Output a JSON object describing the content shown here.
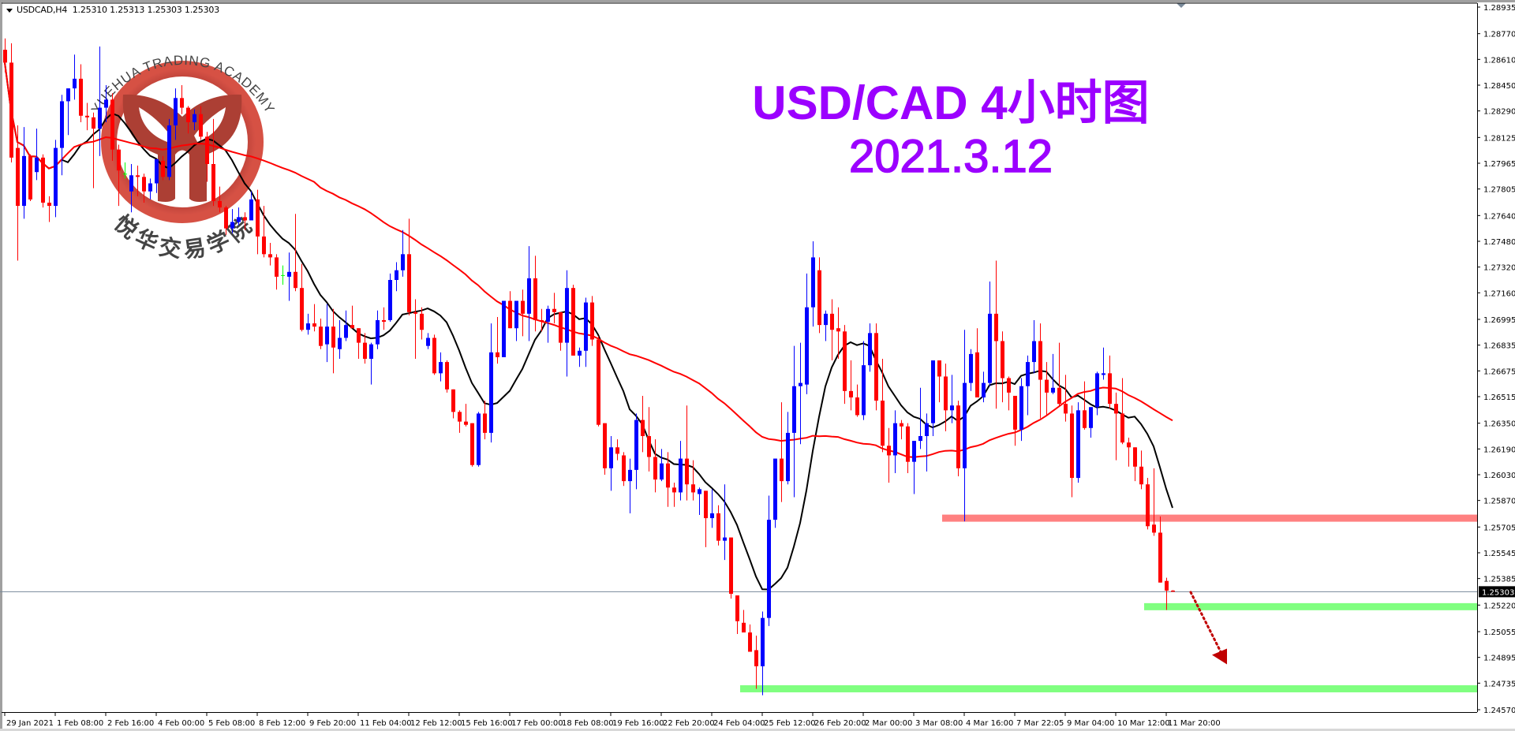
{
  "header": {
    "symbol": "USDCAD,H4",
    "ohlc": "1.25310 1.25313 1.25303 1.25303"
  },
  "title": {
    "line1": "USD/CAD 4小时图",
    "line2": "2021.3.12"
  },
  "watermark": {
    "top_text": "YUEHUA TRADING ACADEMY",
    "bottom_text": "悦华交易学院",
    "ring_color": "#b5332a",
    "text_color": "#3a3a3a"
  },
  "colors": {
    "bull": "#0000ff",
    "bear": "#ff0000",
    "doji": "#00ff00",
    "ma_fast": "#000000",
    "ma_slow": "#ff0000",
    "resistance_zone": "#ff8080",
    "support_zone": "#80ff80",
    "arrow": "#c00000",
    "price_line": "#778899"
  },
  "chart_data": {
    "type": "candlestick",
    "symbol": "USDCAD",
    "timeframe": "H4",
    "ylim": [
      1.2457,
      1.28935
    ],
    "y_ticks": [
      "1.28935",
      "1.28770",
      "1.28610",
      "1.28450",
      "1.28290",
      "1.28125",
      "1.27965",
      "1.27805",
      "1.27640",
      "1.27480",
      "1.27320",
      "1.27160",
      "1.26995",
      "1.26835",
      "1.26675",
      "1.26515",
      "1.26350",
      "1.26190",
      "1.26030",
      "1.25870",
      "1.25705",
      "1.25545",
      "1.25385",
      "1.25220",
      "1.25055",
      "1.24895",
      "1.24735",
      "1.24570"
    ],
    "x_ticks": [
      "29 Jan 2021",
      "1 Feb 08:00",
      "2 Feb 16:00",
      "4 Feb 00:00",
      "5 Feb 08:00",
      "8 Feb 12:00",
      "9 Feb 20:00",
      "11 Feb 04:00",
      "12 Feb 12:00",
      "15 Feb 16:00",
      "17 Feb 00:00",
      "18 Feb 08:00",
      "19 Feb 16:00",
      "22 Feb 20:00",
      "24 Feb 04:00",
      "25 Feb 12:00",
      "26 Feb 20:00",
      "2 Mar 00:00",
      "3 Mar 08:00",
      "4 Mar 16:00",
      "7 Mar 22:05",
      "9 Mar 04:00",
      "10 Mar 12:00",
      "11 Mar 20:00"
    ],
    "x_tick_every_bars": 8,
    "current_price": "1.25303",
    "moving_averages": [
      {
        "period": 10,
        "color": "#000000"
      },
      {
        "period": 50,
        "color": "#ff0000"
      }
    ],
    "zones": [
      {
        "kind": "resistance",
        "price": 1.2576,
        "from_date": "4 Mar 08:00"
      },
      {
        "kind": "support",
        "price": 1.2521,
        "from_date": "11 Mar 16:00"
      },
      {
        "kind": "support",
        "price": 1.247,
        "from_date": "25 Feb 04:00"
      }
    ],
    "arrow": {
      "direction": "down",
      "from_price": 1.253,
      "to_price": 1.2492
    },
    "candles_ohlc": [
      [
        1.2867,
        1.2874,
        1.2853,
        1.2859
      ],
      [
        1.2859,
        1.2871,
        1.2797,
        1.28
      ],
      [
        1.2806,
        1.282,
        1.2736,
        1.277
      ],
      [
        1.277,
        1.2819,
        1.2762,
        1.2801
      ],
      [
        1.2801,
        1.2802,
        1.2773,
        1.2774
      ],
      [
        1.2791,
        1.2818,
        1.2786,
        1.28
      ],
      [
        1.28,
        1.2802,
        1.2769,
        1.2772
      ],
      [
        1.2772,
        1.2776,
        1.276,
        1.277
      ],
      [
        1.277,
        1.2811,
        1.2763,
        1.2806
      ],
      [
        1.2806,
        1.2839,
        1.2789,
        1.2835
      ],
      [
        1.2835,
        1.2843,
        1.2814,
        1.2843
      ],
      [
        1.2843,
        1.2864,
        1.2836,
        1.2849
      ],
      [
        1.2849,
        1.2858,
        1.2822,
        1.2826
      ],
      [
        1.2826,
        1.2834,
        1.2817,
        1.2825
      ],
      [
        1.2825,
        1.2828,
        1.2781,
        1.2818
      ],
      [
        1.2818,
        1.2869,
        1.2801,
        1.2831
      ],
      [
        1.2831,
        1.2845,
        1.2822,
        1.2836
      ],
      [
        1.2836,
        1.284,
        1.2798,
        1.2805
      ],
      [
        1.2805,
        1.2808,
        1.277,
        1.2792
      ],
      [
        1.279,
        1.2797,
        1.2787,
        1.279
      ],
      [
        1.2779,
        1.2796,
        1.2766,
        1.2789
      ],
      [
        1.2789,
        1.2795,
        1.2776,
        1.2788
      ],
      [
        1.2788,
        1.279,
        1.2772,
        1.2779
      ],
      [
        1.2779,
        1.2787,
        1.2774,
        1.2784
      ],
      [
        1.2784,
        1.2799,
        1.2778,
        1.2799
      ],
      [
        1.2798,
        1.2801,
        1.2786,
        1.2788
      ],
      [
        1.2788,
        1.2824,
        1.2786,
        1.282
      ],
      [
        1.282,
        1.2843,
        1.2811,
        1.2837
      ],
      [
        1.2837,
        1.2845,
        1.2827,
        1.2831
      ],
      [
        1.2831,
        1.2832,
        1.2815,
        1.2822
      ],
      [
        1.2822,
        1.283,
        1.2817,
        1.2827
      ],
      [
        1.2827,
        1.2832,
        1.2811,
        1.2813
      ],
      [
        1.2813,
        1.2816,
        1.2785,
        1.2796
      ],
      [
        1.2796,
        1.2824,
        1.277,
        1.2773
      ],
      [
        1.2773,
        1.2782,
        1.2766,
        1.2769
      ],
      [
        1.2769,
        1.277,
        1.2752,
        1.2756
      ],
      [
        1.2756,
        1.2768,
        1.2753,
        1.276
      ],
      [
        1.276,
        1.2769,
        1.2758,
        1.2763
      ],
      [
        1.2763,
        1.2766,
        1.2755,
        1.2761
      ],
      [
        1.2761,
        1.2779,
        1.2762,
        1.2774
      ],
      [
        1.2774,
        1.278,
        1.274,
        1.2751
      ],
      [
        1.2751,
        1.277,
        1.2738,
        1.274
      ],
      [
        1.274,
        1.2747,
        1.2733,
        1.2738
      ],
      [
        1.2738,
        1.274,
        1.2718,
        1.2726
      ],
      [
        1.2727,
        1.2733,
        1.2721,
        1.2727
      ],
      [
        1.2726,
        1.2741,
        1.2711,
        1.2729
      ],
      [
        1.2729,
        1.2765,
        1.2717,
        1.2719
      ],
      [
        1.2719,
        1.2734,
        1.2692,
        1.2693
      ],
      [
        1.2693,
        1.2703,
        1.269,
        1.2697
      ],
      [
        1.2697,
        1.2709,
        1.2692,
        1.2695
      ],
      [
        1.2695,
        1.27,
        1.2681,
        1.2683
      ],
      [
        1.2684,
        1.2709,
        1.2673,
        1.2695
      ],
      [
        1.2695,
        1.2706,
        1.2666,
        1.2682
      ],
      [
        1.2681,
        1.2699,
        1.2675,
        1.2688
      ],
      [
        1.2688,
        1.2705,
        1.2686,
        1.2696
      ],
      [
        1.2696,
        1.2708,
        1.2694,
        1.2694
      ],
      [
        1.2694,
        1.2694,
        1.2675,
        1.2685
      ],
      [
        1.2685,
        1.2691,
        1.2672,
        1.2675
      ],
      [
        1.2675,
        1.2685,
        1.2659,
        1.2684
      ],
      [
        1.2684,
        1.2705,
        1.2681,
        1.2699
      ],
      [
        1.2699,
        1.2707,
        1.2693,
        1.2698
      ],
      [
        1.2699,
        1.2728,
        1.2698,
        1.2724
      ],
      [
        1.2724,
        1.2735,
        1.2717,
        1.273
      ],
      [
        1.273,
        1.2755,
        1.2726,
        1.274
      ],
      [
        1.274,
        1.2762,
        1.2702,
        1.2704
      ],
      [
        1.2704,
        1.2712,
        1.2675,
        1.2703
      ],
      [
        1.2703,
        1.2707,
        1.2687,
        1.2693
      ],
      [
        1.2683,
        1.2691,
        1.2681,
        1.2688
      ],
      [
        1.2688,
        1.269,
        1.2665,
        1.2666
      ],
      [
        1.2666,
        1.2679,
        1.2661,
        1.2673
      ],
      [
        1.2673,
        1.2674,
        1.2654,
        1.2656
      ],
      [
        1.2656,
        1.2656,
        1.2638,
        1.2642
      ],
      [
        1.2642,
        1.2643,
        1.2629,
        1.2636
      ],
      [
        1.2636,
        1.2647,
        1.2633,
        1.2634
      ],
      [
        1.2635,
        1.2635,
        1.2608,
        1.2609
      ],
      [
        1.2609,
        1.2642,
        1.2608,
        1.2641
      ],
      [
        1.2641,
        1.2649,
        1.2625,
        1.2629
      ],
      [
        1.2629,
        1.2697,
        1.2623,
        1.2679
      ],
      [
        1.2679,
        1.2701,
        1.2672,
        1.2676
      ],
      [
        1.2676,
        1.2711,
        1.2676,
        1.2711
      ],
      [
        1.2711,
        1.2717,
        1.2694,
        1.2694
      ],
      [
        1.2694,
        1.2711,
        1.2686,
        1.2711
      ],
      [
        1.2711,
        1.2718,
        1.2689,
        1.2703
      ],
      [
        1.2703,
        1.2745,
        1.2686,
        1.2725
      ],
      [
        1.2725,
        1.2739,
        1.2692,
        1.2699
      ],
      [
        1.2699,
        1.2706,
        1.2692,
        1.2698
      ],
      [
        1.2698,
        1.2708,
        1.2685,
        1.2706
      ],
      [
        1.2706,
        1.2716,
        1.2697,
        1.2704
      ],
      [
        1.2704,
        1.2704,
        1.268,
        1.2685
      ],
      [
        1.2685,
        1.273,
        1.2664,
        1.2719
      ],
      [
        1.2719,
        1.2721,
        1.2677,
        1.2677
      ],
      [
        1.2677,
        1.2682,
        1.267,
        1.268
      ],
      [
        1.268,
        1.2713,
        1.267,
        1.271
      ],
      [
        1.271,
        1.2714,
        1.2683,
        1.2687
      ],
      [
        1.2687,
        1.2689,
        1.2633,
        1.2634
      ],
      [
        1.2635,
        1.2635,
        1.2603,
        1.2607
      ],
      [
        1.2607,
        1.2627,
        1.2593,
        1.262
      ],
      [
        1.262,
        1.2625,
        1.2612,
        1.2616
      ],
      [
        1.2615,
        1.2617,
        1.2596,
        1.2599
      ],
      [
        1.2599,
        1.2613,
        1.2579,
        1.2606
      ],
      [
        1.2606,
        1.2641,
        1.2594,
        1.2637
      ],
      [
        1.2637,
        1.2652,
        1.2617,
        1.2627
      ],
      [
        1.2627,
        1.2645,
        1.2605,
        1.2614
      ],
      [
        1.2614,
        1.2625,
        1.2592,
        1.26
      ],
      [
        1.26,
        1.2619,
        1.2599,
        1.261
      ],
      [
        1.261,
        1.2617,
        1.2583,
        1.2595
      ],
      [
        1.2595,
        1.2598,
        1.2583,
        1.2592
      ],
      [
        1.2592,
        1.2624,
        1.2587,
        1.2613
      ],
      [
        1.2613,
        1.2646,
        1.2587,
        1.2597
      ],
      [
        1.2597,
        1.2612,
        1.2587,
        1.2592
      ],
      [
        1.2591,
        1.2595,
        1.2578,
        1.2594
      ],
      [
        1.2593,
        1.2593,
        1.2558,
        1.2576
      ],
      [
        1.2576,
        1.2594,
        1.257,
        1.2579
      ],
      [
        1.2579,
        1.2584,
        1.2559,
        1.2562
      ],
      [
        1.2562,
        1.2597,
        1.255,
        1.2564
      ],
      [
        1.2564,
        1.2564,
        1.2526,
        1.2529
      ],
      [
        1.2528,
        1.2528,
        1.2504,
        1.2512
      ],
      [
        1.2511,
        1.2519,
        1.2505,
        1.2505
      ],
      [
        1.2505,
        1.251,
        1.2493,
        1.2493
      ],
      [
        1.2494,
        1.2503,
        1.247,
        1.2484
      ],
      [
        1.2484,
        1.2518,
        1.2466,
        1.2514
      ],
      [
        1.2514,
        1.259,
        1.2509,
        1.2575
      ],
      [
        1.2575,
        1.2613,
        1.257,
        1.2613
      ],
      [
        1.2613,
        1.2648,
        1.2586,
        1.2599
      ],
      [
        1.2599,
        1.2642,
        1.2597,
        1.2629
      ],
      [
        1.2629,
        1.2683,
        1.2589,
        1.2658
      ],
      [
        1.2658,
        1.2685,
        1.2622,
        1.266
      ],
      [
        1.2659,
        1.2728,
        1.2653,
        1.2707
      ],
      [
        1.2707,
        1.2748,
        1.2695,
        1.2738
      ],
      [
        1.273,
        1.2738,
        1.2691,
        1.2696
      ],
      [
        1.2696,
        1.2705,
        1.2686,
        1.2703
      ],
      [
        1.2703,
        1.2712,
        1.2674,
        1.2693
      ],
      [
        1.2694,
        1.2707,
        1.2675,
        1.2692
      ],
      [
        1.2692,
        1.2696,
        1.2647,
        1.2655
      ],
      [
        1.2655,
        1.2674,
        1.2643,
        1.2651
      ],
      [
        1.2651,
        1.2659,
        1.2639,
        1.264
      ],
      [
        1.264,
        1.2686,
        1.2637,
        1.2671
      ],
      [
        1.2671,
        1.2697,
        1.2667,
        1.2691
      ],
      [
        1.2691,
        1.2697,
        1.2643,
        1.2649
      ],
      [
        1.2649,
        1.2675,
        1.2617,
        1.2621
      ],
      [
        1.2621,
        1.2632,
        1.2598,
        1.2615
      ],
      [
        1.2615,
        1.2643,
        1.2604,
        1.2635
      ],
      [
        1.2635,
        1.2637,
        1.2625,
        1.2633
      ],
      [
        1.2633,
        1.2635,
        1.2604,
        1.2611
      ],
      [
        1.2611,
        1.2624,
        1.2591,
        1.2624
      ],
      [
        1.2624,
        1.2657,
        1.2619,
        1.2627
      ],
      [
        1.2627,
        1.2641,
        1.2605,
        1.2635
      ],
      [
        1.2635,
        1.2674,
        1.2627,
        1.2674
      ],
      [
        1.2674,
        1.2674,
        1.2648,
        1.2664
      ],
      [
        1.2664,
        1.2672,
        1.263,
        1.2643
      ],
      [
        1.2643,
        1.2665,
        1.2635,
        1.2646
      ],
      [
        1.2646,
        1.2649,
        1.2602,
        1.2607
      ],
      [
        1.2607,
        1.2693,
        1.2574,
        1.266
      ],
      [
        1.266,
        1.2681,
        1.2655,
        1.2678
      ],
      [
        1.2679,
        1.2694,
        1.2651,
        1.2651
      ],
      [
        1.2651,
        1.2667,
        1.2648,
        1.266
      ],
      [
        1.266,
        1.2723,
        1.2658,
        1.2703
      ],
      [
        1.2703,
        1.2736,
        1.2644,
        1.2686
      ],
      [
        1.2686,
        1.2692,
        1.2648,
        1.2663
      ],
      [
        1.2663,
        1.2664,
        1.2643,
        1.2654
      ],
      [
        1.2652,
        1.2652,
        1.2621,
        1.2631
      ],
      [
        1.2631,
        1.2663,
        1.2624,
        1.2658
      ],
      [
        1.2658,
        1.2677,
        1.264,
        1.2673
      ],
      [
        1.2673,
        1.2699,
        1.2666,
        1.2686
      ],
      [
        1.2686,
        1.2697,
        1.2638,
        1.2662
      ],
      [
        1.2662,
        1.2673,
        1.264,
        1.2654
      ],
      [
        1.2654,
        1.2678,
        1.2653,
        1.2657
      ],
      [
        1.2657,
        1.2685,
        1.2646,
        1.2647
      ],
      [
        1.2647,
        1.2665,
        1.2636,
        1.2641
      ],
      [
        1.2641,
        1.2646,
        1.2589,
        1.2601
      ],
      [
        1.2601,
        1.2648,
        1.2598,
        1.2643
      ],
      [
        1.2643,
        1.2661,
        1.2631,
        1.2632
      ],
      [
        1.2632,
        1.2645,
        1.2626,
        1.2645
      ],
      [
        1.2645,
        1.2667,
        1.264,
        1.2666
      ],
      [
        1.2665,
        1.2682,
        1.2662,
        1.2666
      ],
      [
        1.2666,
        1.2677,
        1.2644,
        1.2647
      ],
      [
        1.2647,
        1.2654,
        1.2612,
        1.2641
      ],
      [
        1.2641,
        1.2663,
        1.2622,
        1.2623
      ],
      [
        1.2623,
        1.2626,
        1.2608,
        1.262
      ],
      [
        1.262,
        1.262,
        1.2599,
        1.2608
      ],
      [
        1.2608,
        1.2618,
        1.2594,
        1.2597
      ],
      [
        1.2597,
        1.2601,
        1.2569,
        1.2571
      ],
      [
        1.2572,
        1.2607,
        1.2565,
        1.2567
      ],
      [
        1.2567,
        1.2577,
        1.2536,
        1.2536
      ],
      [
        1.2537,
        1.2539,
        1.2519,
        1.2531
      ],
      [
        1.2531,
        1.25313,
        1.25303,
        1.25303
      ]
    ]
  }
}
